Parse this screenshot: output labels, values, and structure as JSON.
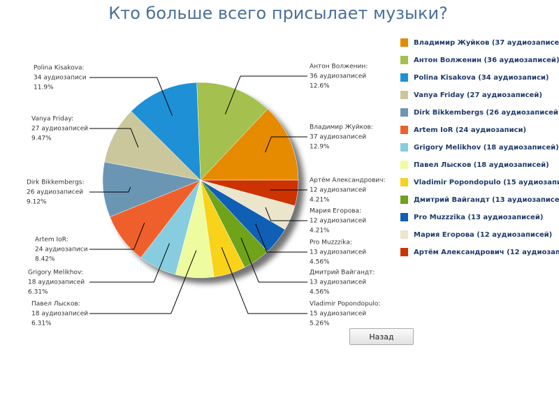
{
  "chart_data": {
    "type": "pie",
    "title": "Кто больше всего присылает музыки?",
    "categories": [
      "Владимир Жуйков:",
      "Антон Волженин:",
      "Polina Kisakova:",
      "Vanya Friday:",
      "Dirk Bikkembergs:",
      "Artem IoR:",
      "Grigory Melikhov:",
      "Павел Лысков:",
      "Vladimir Popondopulo:",
      "Дмитрий Вайгандт:",
      "Pro Muzzzika:",
      "Мария Егорова:",
      "Артём Александрович:"
    ],
    "values": [
      37,
      36,
      34,
      27,
      26,
      24,
      18,
      18,
      15,
      13,
      13,
      12,
      12
    ],
    "value_labels": [
      "37 аудиозаписей",
      "36 аудиозаписей",
      "34 аудиозаписи",
      "27 аудиозаписей",
      "26 аудиозаписей",
      "24 аудиозаписи",
      "18 аудиозаписей",
      "18 аудиозаписей",
      "15 аудиозаписей",
      "13 аудиозаписей",
      "13 аудиозаписей",
      "12 аудиозаписей",
      "12 аудиозаписей"
    ],
    "percent_labels": [
      "12.9%",
      "12.6%",
      "11.9%",
      "9.47%",
      "9.12%",
      "8.42%",
      "6.31%",
      "6.31%",
      "5.26%",
      "4.56%",
      "4.56%",
      "4.21%",
      "4.21%"
    ],
    "legend_labels": [
      "Владимир Жуйков (37 аудиозаписей)",
      "Антон Волженин (36 аудиозаписей)",
      "Polina Kisakova (34 аудиозаписи)",
      "Vanya Friday (27 аудиозаписей)",
      "Dirk Bikkembergs (26 аудиозаписей)",
      "Artem IoR (24 аудиозаписи)",
      "Grigory Melikhov (18 аудиозаписей)",
      "Павел Лысков (18 аудиозаписей)",
      "Vladimir Popondopulo (15 аудиозаписей)",
      "Дмитрий Вайгандт (13 аудиозаписей)",
      "Pro Muzzzika (13 аудиозаписей)",
      "Мария Егорова (12 аудиозаписей)",
      "Артём Александрович (12 аудиозаписей)"
    ],
    "colors": [
      "#e68a00",
      "#a4c04f",
      "#1e90d6",
      "#cac79d",
      "#6a96b4",
      "#ef5f2b",
      "#87ccdf",
      "#eefc9f",
      "#f9d21a",
      "#6fa31a",
      "#0f5fb5",
      "#ebe5cc",
      "#cc3300"
    ],
    "legend": "right"
  },
  "back_button": "Назад"
}
